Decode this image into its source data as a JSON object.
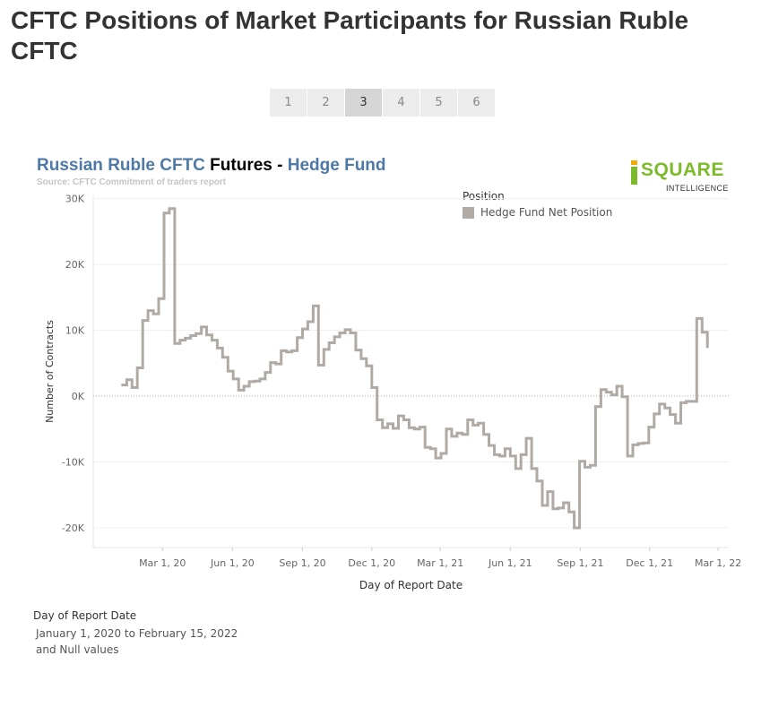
{
  "page_title": "CFTC Positions of Market Participants for Russian Ruble CFTC",
  "pager": {
    "pages": [
      "1",
      "2",
      "3",
      "4",
      "5",
      "6"
    ],
    "active": "3"
  },
  "chart_title": {
    "part1": "Russian Ruble CFTC",
    "part2": " Futures - ",
    "part3": "Hedge Fund"
  },
  "source": "Source: CFTC Commitment of traders report",
  "logo": {
    "big": "SQUARE",
    "small": "INTELLIGENCE",
    "colors": {
      "green": "#7dba2a",
      "orange": "#f2a900"
    }
  },
  "legend": {
    "title": "Position",
    "item": "Hedge Fund Net Position"
  },
  "filter": {
    "title": "Day of Report Date",
    "line1": "January 1, 2020 to February 15, 2022",
    "line2": "and Null values"
  },
  "chart_data": {
    "type": "line",
    "step": true,
    "color": "#b0aaa5",
    "xlabel": "Day of Report Date",
    "ylabel": "Number of Contracts",
    "ylim": [
      -23000,
      30500
    ],
    "yticks": [
      30000,
      20000,
      10000,
      0,
      -10000,
      -20000
    ],
    "ytick_labels": [
      "30K",
      "20K",
      "10K",
      "0K",
      "-10K",
      "-20K"
    ],
    "xlim": [
      "2019-12-01",
      "2022-03-15"
    ],
    "xticks": [
      "2020-03-01",
      "2020-06-01",
      "2020-09-01",
      "2020-12-01",
      "2021-03-01",
      "2021-06-01",
      "2021-09-01",
      "2021-12-01",
      "2022-03-01"
    ],
    "xtick_labels": [
      "Mar 1, 20",
      "Jun 1, 20",
      "Sep 1, 20",
      "Dec 1, 20",
      "Mar 1, 21",
      "Jun 1, 21",
      "Sep 1, 21",
      "Dec 1, 21",
      "Mar 1, 22"
    ],
    "grid": true,
    "zero_line": true,
    "legend": "top-right",
    "series": [
      {
        "name": "Hedge Fund Net Position",
        "x": [
          "2020-01-07",
          "2020-01-14",
          "2020-01-21",
          "2020-01-28",
          "2020-02-04",
          "2020-02-11",
          "2020-02-18",
          "2020-02-25",
          "2020-03-03",
          "2020-03-10",
          "2020-03-17",
          "2020-03-24",
          "2020-03-31",
          "2020-04-07",
          "2020-04-14",
          "2020-04-21",
          "2020-04-28",
          "2020-05-05",
          "2020-05-12",
          "2020-05-19",
          "2020-05-26",
          "2020-06-02",
          "2020-06-09",
          "2020-06-16",
          "2020-06-23",
          "2020-06-30",
          "2020-07-07",
          "2020-07-14",
          "2020-07-21",
          "2020-07-28",
          "2020-08-04",
          "2020-08-11",
          "2020-08-18",
          "2020-08-25",
          "2020-09-01",
          "2020-09-08",
          "2020-09-15",
          "2020-09-22",
          "2020-09-29",
          "2020-10-06",
          "2020-10-13",
          "2020-10-20",
          "2020-10-27",
          "2020-11-03",
          "2020-11-10",
          "2020-11-17",
          "2020-11-24",
          "2020-12-01",
          "2020-12-08",
          "2020-12-15",
          "2020-12-22",
          "2020-12-29",
          "2021-01-05",
          "2021-01-12",
          "2021-01-19",
          "2021-01-26",
          "2021-02-02",
          "2021-02-09",
          "2021-02-16",
          "2021-02-23",
          "2021-03-02",
          "2021-03-09",
          "2021-03-16",
          "2021-03-23",
          "2021-03-30",
          "2021-04-06",
          "2021-04-13",
          "2021-04-20",
          "2021-04-27",
          "2021-05-04",
          "2021-05-11",
          "2021-05-18",
          "2021-05-25",
          "2021-06-01",
          "2021-06-08",
          "2021-06-15",
          "2021-06-22",
          "2021-06-29",
          "2021-07-06",
          "2021-07-13",
          "2021-07-20",
          "2021-07-27",
          "2021-08-03",
          "2021-08-10",
          "2021-08-17",
          "2021-08-24",
          "2021-08-31",
          "2021-09-07",
          "2021-09-14",
          "2021-09-21",
          "2021-09-28",
          "2021-10-05",
          "2021-10-12",
          "2021-10-19",
          "2021-10-26",
          "2021-11-02",
          "2021-11-09",
          "2021-11-16",
          "2021-11-23",
          "2021-11-30",
          "2021-12-07",
          "2021-12-14",
          "2021-12-21",
          "2021-12-28",
          "2022-01-04",
          "2022-01-11",
          "2022-01-18",
          "2022-01-25",
          "2022-02-01",
          "2022-02-08",
          "2022-02-15"
        ],
        "y": [
          1700,
          2500,
          1300,
          4300,
          11500,
          13000,
          12500,
          14800,
          27800,
          28500,
          8000,
          8500,
          8800,
          9200,
          9500,
          10500,
          9300,
          8500,
          7300,
          5900,
          3800,
          2600,
          900,
          1500,
          2200,
          2300,
          2600,
          3600,
          5100,
          4900,
          6900,
          6700,
          6900,
          8900,
          10200,
          11300,
          13700,
          4700,
          7100,
          8100,
          9000,
          9600,
          10100,
          9600,
          7000,
          5700,
          4600,
          1300,
          -3600,
          -4800,
          -4200,
          -4900,
          -3000,
          -3600,
          -4800,
          -5000,
          -4700,
          -7800,
          -8000,
          -9400,
          -8700,
          -5000,
          -6100,
          -5600,
          -5800,
          -3600,
          -4400,
          -4100,
          -5800,
          -7500,
          -8900,
          -9100,
          -8000,
          -9100,
          -11000,
          -8900,
          -6400,
          -11000,
          -12900,
          -16600,
          -14500,
          -17100,
          -17000,
          -16200,
          -17600,
          -20000,
          -9900,
          -10800,
          -10500,
          -1600,
          1000,
          600,
          200,
          1500,
          -100,
          -9100,
          -7400,
          -7200,
          -7100,
          -4700,
          -2700,
          -1200,
          -1800,
          -2800,
          -4100,
          -1000,
          -800,
          -800,
          11800,
          9700,
          7300
        ]
      }
    ]
  }
}
